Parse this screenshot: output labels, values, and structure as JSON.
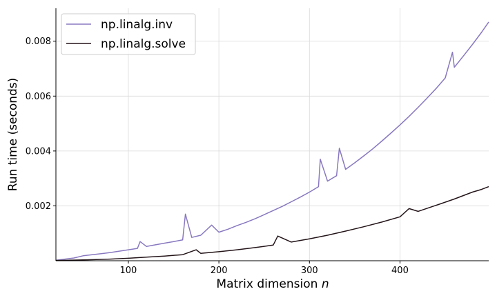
{
  "chart_data": {
    "type": "line",
    "title": "",
    "xlabel_text": "Matrix dimension ",
    "xlabel_var": "n",
    "ylabel": "Run time (seconds)",
    "xlim": [
      20,
      498
    ],
    "ylim": [
      0,
      0.0092
    ],
    "xticks": [
      100,
      200,
      300,
      400
    ],
    "xtick_labels": [
      "100",
      "200",
      "300",
      "400"
    ],
    "yticks": [
      0.002,
      0.004,
      0.006,
      0.008
    ],
    "ytick_labels": [
      "0.002",
      "0.004",
      "0.006",
      "0.008"
    ],
    "grid": true,
    "legend_position": "top-left",
    "series": [
      {
        "name": "np.linalg.inv",
        "color": "#8878c0",
        "x": [
          20,
          40,
          50,
          60,
          70,
          80,
          90,
          100,
          110,
          113,
          120,
          130,
          140,
          150,
          160,
          163,
          170,
          180,
          192,
          200,
          210,
          220,
          230,
          240,
          250,
          260,
          270,
          280,
          290,
          300,
          310,
          312,
          320,
          330,
          333,
          340,
          350,
          360,
          370,
          380,
          390,
          400,
          410,
          420,
          430,
          440,
          450,
          458,
          460,
          470,
          480,
          490,
          498
        ],
        "y": [
          2e-05,
          0.0001,
          0.00018,
          0.00022,
          0.00026,
          0.0003,
          0.00035,
          0.0004,
          0.00045,
          0.0007,
          0.00052,
          0.00058,
          0.00064,
          0.0007,
          0.00076,
          0.0017,
          0.00085,
          0.00093,
          0.0013,
          0.00104,
          0.00115,
          0.00128,
          0.0014,
          0.00153,
          0.00168,
          0.00183,
          0.00198,
          0.00215,
          0.00232,
          0.0025,
          0.0027,
          0.0037,
          0.0029,
          0.0031,
          0.0041,
          0.00333,
          0.00357,
          0.00382,
          0.00408,
          0.00436,
          0.00465,
          0.00495,
          0.00526,
          0.00559,
          0.00593,
          0.00628,
          0.00666,
          0.0076,
          0.00705,
          0.00746,
          0.00788,
          0.00832,
          0.0087
        ]
      },
      {
        "name": "np.linalg.solve",
        "color": "#231418",
        "x": [
          20,
          50,
          80,
          100,
          120,
          140,
          160,
          175,
          180,
          200,
          220,
          240,
          260,
          265,
          280,
          300,
          320,
          340,
          360,
          380,
          400,
          410,
          420,
          440,
          460,
          480,
          490,
          498
        ],
        "y": [
          1e-05,
          3e-05,
          6e-05,
          9e-05,
          0.00013,
          0.00017,
          0.00022,
          0.0004,
          0.00027,
          0.00033,
          0.0004,
          0.00048,
          0.00057,
          0.0009,
          0.00068,
          0.0008,
          0.00093,
          0.00108,
          0.00124,
          0.00141,
          0.0016,
          0.0019,
          0.0018,
          0.00202,
          0.00225,
          0.0025,
          0.0026,
          0.0027
        ]
      }
    ]
  }
}
